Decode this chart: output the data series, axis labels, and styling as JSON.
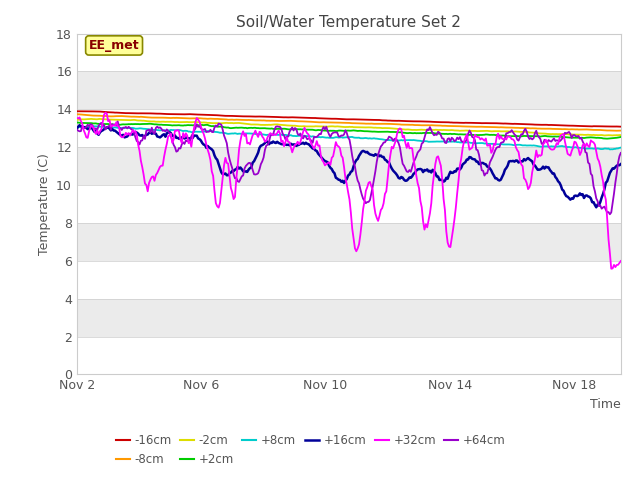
{
  "title": "Soil/Water Temperature Set 2",
  "xlabel": "Time",
  "ylabel": "Temperature (C)",
  "ylim": [
    0,
    18
  ],
  "yticks": [
    0,
    2,
    4,
    6,
    8,
    10,
    12,
    14,
    16,
    18
  ],
  "xlim": [
    0,
    17.5
  ],
  "xtick_positions": [
    0,
    4,
    8,
    12,
    16
  ],
  "xtick_labels": [
    "Nov 2",
    "Nov 6",
    "Nov 10",
    "Nov 14",
    "Nov 18"
  ],
  "legend_label": "EE_met",
  "colors": {
    "-16cm": "#cc0000",
    "-8cm": "#ff9900",
    "-2cm": "#dddd00",
    "+2cm": "#00cc00",
    "+8cm": "#00cccc",
    "+16cm": "#000099",
    "+32cm": "#ff00ff",
    "+64cm": "#9900cc"
  },
  "fig_bg": "#ffffff",
  "plot_bg_light": "#f0f0f0",
  "plot_bg_dark": "#e0e0e0",
  "ee_met_color": "#880000",
  "ee_met_bg": "#ffff99",
  "ee_met_edge": "#888800",
  "n_points": 400
}
